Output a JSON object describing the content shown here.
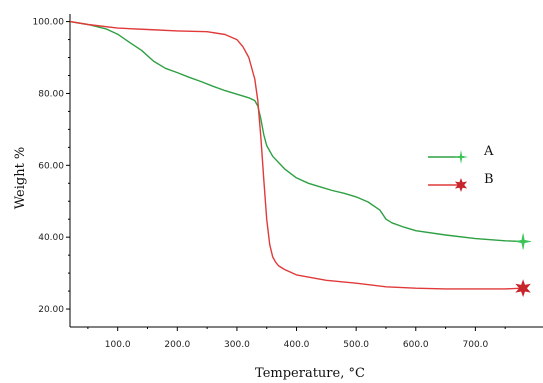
{
  "chart_data": {
    "type": "line",
    "title": "",
    "xlabel": "Temperature, °C",
    "ylabel": "Weight %",
    "xlim": [
      20,
      800
    ],
    "ylim": [
      15,
      101
    ],
    "x_ticks": [
      100,
      200,
      300,
      400,
      500,
      600,
      700
    ],
    "x_tick_labels": [
      "100.0",
      "200.0",
      "300.0",
      "400.0",
      "500.0",
      "600.0",
      "700.0"
    ],
    "y_ticks": [
      20,
      40,
      60,
      80,
      100
    ],
    "y_tick_labels": [
      "20.00",
      "40.00",
      "60.00",
      "80.00",
      "100.00"
    ],
    "grid": false,
    "legend_position": "right",
    "series": [
      {
        "name": "A",
        "color": "#2ea043",
        "marker_color": "#3cc45a",
        "marker": "star4",
        "x": [
          20,
          50,
          80,
          100,
          120,
          140,
          160,
          180,
          200,
          220,
          240,
          260,
          280,
          300,
          320,
          330,
          335,
          340,
          345,
          350,
          360,
          380,
          400,
          420,
          440,
          460,
          480,
          500,
          520,
          540,
          550,
          560,
          580,
          600,
          650,
          700,
          750,
          780
        ],
        "values": [
          100,
          99.2,
          98,
          96.5,
          94.2,
          92,
          89,
          87,
          85.8,
          84.5,
          83.3,
          82,
          80.8,
          79.8,
          78.8,
          78,
          76.5,
          73,
          68.5,
          65.5,
          62.5,
          59,
          56.5,
          55,
          54,
          53,
          52.2,
          51.2,
          49.8,
          47.5,
          45,
          44,
          42.8,
          41.8,
          40.6,
          39.6,
          39,
          38.8
        ]
      },
      {
        "name": "B",
        "color": "#e03a3a",
        "marker_color": "#c8242c",
        "marker": "star6",
        "x": [
          20,
          50,
          100,
          150,
          200,
          250,
          280,
          300,
          310,
          320,
          330,
          335,
          340,
          345,
          350,
          355,
          360,
          365,
          370,
          380,
          400,
          450,
          500,
          550,
          600,
          650,
          700,
          750,
          780
        ],
        "values": [
          100,
          99.2,
          98.2,
          97.8,
          97.4,
          97.2,
          96.4,
          95,
          93,
          90,
          84,
          78,
          68,
          56,
          45,
          38,
          34.5,
          33,
          32,
          31,
          29.5,
          28,
          27.2,
          26.2,
          25.8,
          25.6,
          25.6,
          25.6,
          25.8
        ]
      }
    ]
  }
}
